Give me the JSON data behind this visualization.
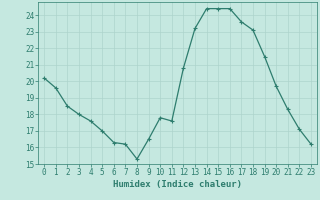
{
  "x": [
    0,
    1,
    2,
    3,
    4,
    5,
    6,
    7,
    8,
    9,
    10,
    11,
    12,
    13,
    14,
    15,
    16,
    17,
    18,
    19,
    20,
    21,
    22,
    23
  ],
  "y": [
    20.2,
    19.6,
    18.5,
    18.0,
    17.6,
    17.0,
    16.3,
    16.2,
    15.3,
    16.5,
    17.8,
    17.6,
    20.8,
    23.2,
    24.4,
    24.4,
    24.4,
    23.6,
    23.1,
    21.5,
    19.7,
    18.3,
    17.1,
    16.2
  ],
  "line_color": "#2e7d6e",
  "marker": "+",
  "marker_size": 3,
  "marker_lw": 0.8,
  "line_width": 0.9,
  "bg_color": "#c5e8e0",
  "grid_color": "#aed4cc",
  "xlabel": "Humidex (Indice chaleur)",
  "ylim": [
    15,
    24.8
  ],
  "yticks": [
    15,
    16,
    17,
    18,
    19,
    20,
    21,
    22,
    23,
    24
  ],
  "xticks": [
    0,
    1,
    2,
    3,
    4,
    5,
    6,
    7,
    8,
    9,
    10,
    11,
    12,
    13,
    14,
    15,
    16,
    17,
    18,
    19,
    20,
    21,
    22,
    23
  ],
  "xlim": [
    -0.5,
    23.5
  ],
  "tick_fontsize": 5.5,
  "xlabel_fontsize": 6.5,
  "spine_color": "#2e7d6e"
}
